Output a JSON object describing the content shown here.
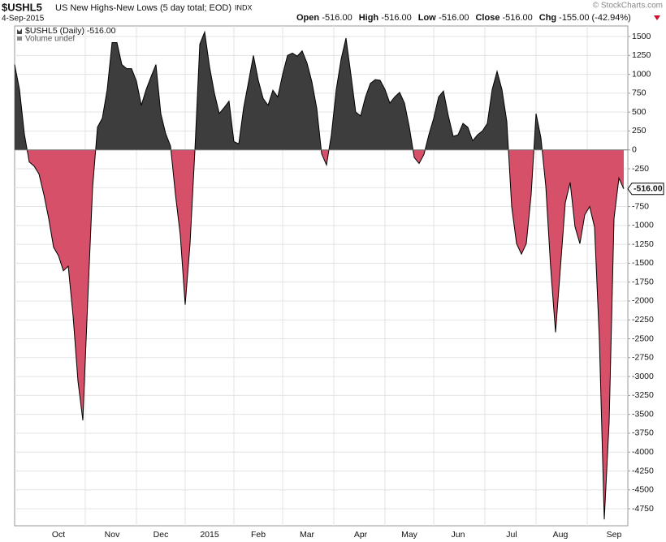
{
  "chart_data": {
    "type": "area",
    "title": "$USHL5",
    "subtitle": "US New Highs-New Lows (5 day total; EOD)",
    "exchange": "INDX",
    "date": "4-Sep-2015",
    "watermark": "© StockCharts.com",
    "quote": [
      {
        "label": "Open",
        "value": "-516.00"
      },
      {
        "label": "High",
        "value": "-516.00"
      },
      {
        "label": "Low",
        "value": "-516.00"
      },
      {
        "label": "Close",
        "value": "-516.00"
      },
      {
        "label": "Chg",
        "value": "-155.00 (-42.94%)"
      }
    ],
    "volume_legend": "Volume undef",
    "last_label": "-516.00",
    "categories": [
      null,
      null,
      null,
      null,
      null,
      null,
      null,
      null,
      null,
      "Oct",
      null,
      null,
      null,
      null,
      null,
      null,
      null,
      null,
      null,
      null,
      "Nov",
      null,
      null,
      null,
      null,
      null,
      null,
      null,
      null,
      null,
      "Dec",
      null,
      null,
      null,
      null,
      null,
      null,
      null,
      null,
      null,
      "2015",
      null,
      null,
      null,
      null,
      null,
      null,
      null,
      null,
      null,
      "Feb",
      null,
      null,
      null,
      null,
      null,
      null,
      null,
      null,
      null,
      "Mar",
      null,
      null,
      null,
      null,
      null,
      null,
      null,
      null,
      null,
      null,
      "Apr",
      null,
      null,
      null,
      null,
      null,
      null,
      null,
      null,
      null,
      "May",
      null,
      null,
      null,
      null,
      null,
      null,
      null,
      null,
      null,
      "Jun",
      null,
      null,
      null,
      null,
      null,
      null,
      null,
      null,
      null,
      null,
      "Jul",
      null,
      null,
      null,
      null,
      null,
      null,
      null,
      null,
      null,
      "Aug",
      null,
      null,
      null,
      null,
      null,
      null,
      null,
      null,
      null,
      null,
      "Sep",
      null,
      null
    ],
    "series": [
      {
        "name": "$USHL5 (Daily) -516.00",
        "color": "#000000",
        "positive_color": "#3d3d3d",
        "negative_color": "#d6506a",
        "values": [
          1130,
          800,
          210,
          -160,
          -215,
          -320,
          -590,
          -910,
          -1290,
          -1400,
          -1600,
          -1540,
          -2200,
          -3060,
          -3580,
          -2000,
          -500,
          300,
          420,
          800,
          1420,
          1420,
          1130,
          1075,
          1075,
          910,
          590,
          800,
          970,
          1130,
          480,
          215,
          50,
          -590,
          -1130,
          -2050,
          -1240,
          0,
          1400,
          1560,
          1100,
          750,
          480,
          560,
          645,
          110,
          80,
          560,
          900,
          1250,
          920,
          680,
          590,
          790,
          700,
          1000,
          1250,
          1280,
          1240,
          1310,
          1150,
          900,
          550,
          -50,
          -200,
          200,
          800,
          1200,
          1480,
          1000,
          500,
          450,
          700,
          880,
          930,
          920,
          800,
          620,
          700,
          760,
          620,
          300,
          -100,
          -180,
          -60,
          200,
          420,
          700,
          780,
          450,
          180,
          200,
          350,
          300,
          120,
          200,
          250,
          350,
          800,
          1040,
          800,
          375,
          -750,
          -1240,
          -1380,
          -1240,
          -590,
          480,
          160,
          -480,
          -1560,
          -2415,
          -1560,
          -700,
          -430,
          -1020,
          -1240,
          -860,
          -750,
          -1020,
          -2520,
          -4890,
          -3600,
          -910,
          -375,
          -516
        ]
      }
    ],
    "ylim": [
      -4975,
      1640
    ],
    "yticks": [
      1500,
      1250,
      1000,
      750,
      500,
      250,
      0,
      -250,
      -500,
      -750,
      -1000,
      -1250,
      -1500,
      -1750,
      -2000,
      -2250,
      -2500,
      -2750,
      -3000,
      -3250,
      -3500,
      -3750,
      -4000,
      -4250,
      -4500,
      -4750
    ],
    "grid": true
  }
}
